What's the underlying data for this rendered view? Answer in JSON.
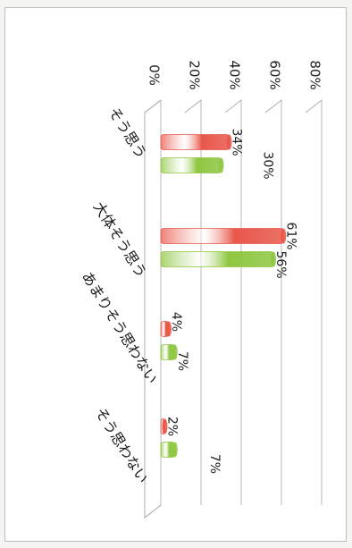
{
  "chart_data": {
    "type": "bar",
    "orientation": "rotated-90-clockwise",
    "categories": [
      "そう思う",
      "大体そう思う",
      "あまりそう思わない",
      "そう思わない"
    ],
    "series": [
      {
        "values": [
          34,
          61,
          4,
          2
        ],
        "labels": [
          "34%",
          "61%",
          "4%",
          "2%"
        ],
        "color": "#e8574a"
      },
      {
        "values": [
          30,
          56,
          7,
          7
        ],
        "labels": [
          "30%",
          "56%",
          "7%",
          "7%"
        ],
        "color": "#8ec640"
      }
    ],
    "y_ticks": [
      "0%",
      "20%",
      "40%",
      "60%",
      "80%"
    ],
    "ylim": [
      0,
      80
    ],
    "grid": true,
    "three_d": true
  }
}
